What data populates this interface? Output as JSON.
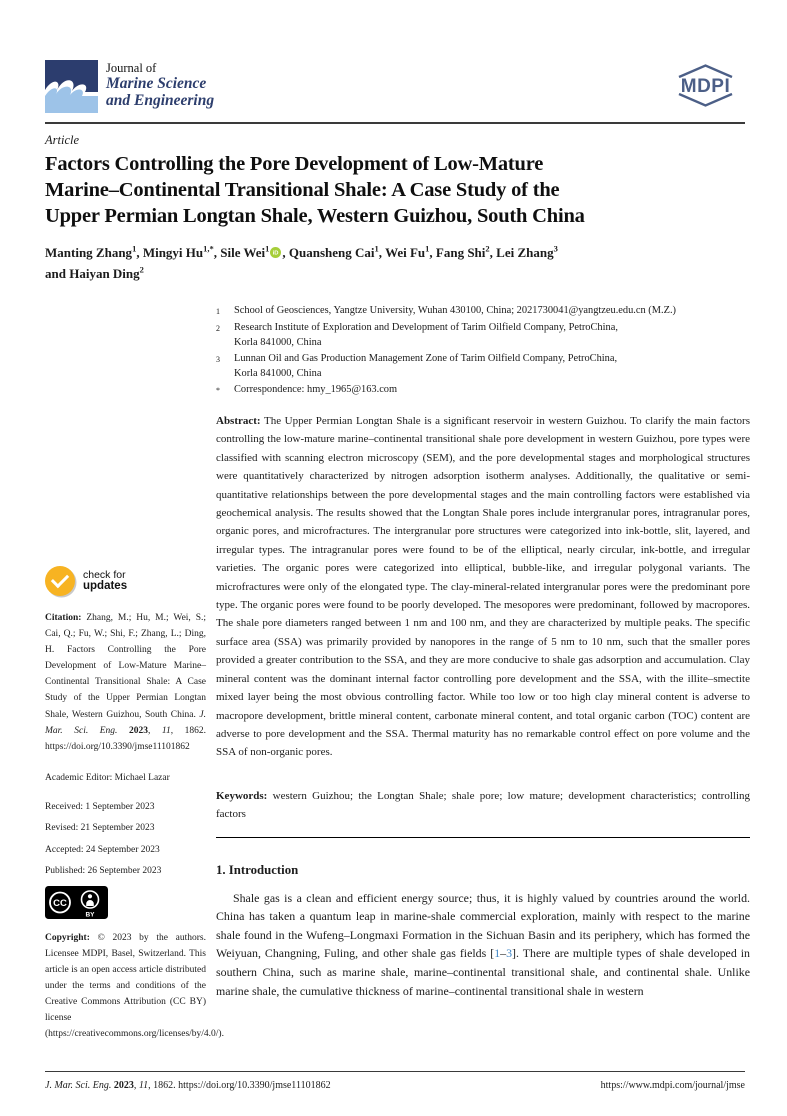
{
  "header": {
    "journal_prefix": "Journal of",
    "journal_name_line1": "Marine Science",
    "journal_name_line2": "and Engineering",
    "mdpi_text": "MDPI",
    "brand_navy": "#2d3e6d",
    "brand_lightblue": "#9dc3e8",
    "mdpi_color": "#4c5f87"
  },
  "article": {
    "type_label": "Article",
    "title_lines": [
      "Factors Controlling the Pore Development of Low-Mature",
      "Marine–Continental Transitional Shale: A Case Study of the",
      "Upper Permian Longtan Shale, Western Guizhou, South China"
    ],
    "authors_line1": [
      {
        "name": "Manting Zhang",
        "sup": "1",
        "sep": ", "
      },
      {
        "name": "Mingyi Hu",
        "sup": "1,*",
        "sep": ", "
      },
      {
        "name": "Sile Wei",
        "sup": "1",
        "sep": ", "
      },
      {
        "name": "Quansheng Cai",
        "sup": "1",
        "sep": ", "
      },
      {
        "name": "Wei Fu",
        "sup": "1",
        "sep": ", "
      },
      {
        "name": "Fang Shi",
        "sup": "2",
        "sep": ", "
      },
      {
        "name": "Lei Zhang",
        "sup": "3",
        "sep": ""
      }
    ],
    "authors_line2_prefix": "and ",
    "authors_line2": [
      {
        "name": "Haiyan Ding",
        "sup": "2",
        "sep": ""
      }
    ],
    "affiliations": [
      {
        "sup": "1",
        "lines": [
          "School of Geosciences, Yangtze University, Wuhan 430100, China; 2021730041@yangtzeu.edu.cn (M.Z.)"
        ]
      },
      {
        "sup": "2",
        "lines": [
          "Research Institute of Exploration and Development of Tarim Oilfield Company, PetroChina,",
          "Korla 841000, China"
        ]
      },
      {
        "sup": "3",
        "lines": [
          "Lunnan Oil and Gas Production Management Zone of Tarim Oilfield Company, PetroChina,",
          "Korla 841000, China"
        ]
      },
      {
        "sup": "*",
        "lines": [
          "Correspondence: hmy_1965@163.com"
        ]
      }
    ],
    "abstract_label": "Abstract:",
    "abstract_text": "The Upper Permian Longtan Shale is a significant reservoir in western Guizhou. To clarify the main factors controlling the low-mature marine–continental transitional shale pore development in western Guizhou, pore types were classified with scanning electron microscopy (SEM), and the pore developmental stages and morphological structures were quantitatively characterized by nitrogen adsorption isotherm analyses. Additionally, the qualitative or semi-quantitative relationships between the pore developmental stages and the main controlling factors were established via geochemical analysis. The results showed that the Longtan Shale pores include intergranular pores, intragranular pores, organic pores, and microfractures. The intergranular pore structures were categorized into ink-bottle, slit, layered, and irregular types. The intragranular pores were found to be of the elliptical, nearly circular, ink-bottle, and irregular varieties. The organic pores were categorized into elliptical, bubble-like, and irregular polygonal variants. The microfractures were only of the elongated type. The clay-mineral-related intergranular pores were the predominant pore type. The organic pores were found to be poorly developed. The mesopores were predominant, followed by macropores. The shale pore diameters ranged between 1 nm and 100 nm, and they are characterized by multiple peaks. The specific surface area (SSA) was primarily provided by nanopores in the range of 5 nm to 10 nm, such that the smaller pores provided a greater contribution to the SSA, and they are more conducive to shale gas adsorption and accumulation. Clay mineral content was the dominant internal factor controlling pore development and the SSA, with the illite–smectite mixed layer being the most obvious controlling factor. While too low or too high clay mineral content is adverse to macropore development, brittle mineral content, carbonate mineral content, and total organic carbon (TOC) content are adverse to pore development and the SSA. Thermal maturity has no remarkable control effect on pore volume and the SSA of non-organic pores.",
    "keywords_label": "Keywords:",
    "keywords_text": "western Guizhou; the Longtan Shale; shale pore; low mature; development characteristics; controlling factors"
  },
  "sidebar": {
    "crossmark": {
      "line1": "check for",
      "line2": "updates"
    },
    "citation_label": "Citation:",
    "citation_segments": [
      {
        "t": "Zhang, M.; Hu, M.; Wei, S.; Cai, Q.; Fu, W.; Shi, F.; Zhang, L.; Ding, H. Factors Controlling the Pore Development of Low-Mature Marine–Continental Transitional Shale: A Case Study of the Upper Permian Longtan Shale, Western Guizhou, South China. ",
        "s": "plain"
      },
      {
        "t": "J. Mar. Sci. Eng. ",
        "s": "italic"
      },
      {
        "t": "2023",
        "s": "bold"
      },
      {
        "t": ", ",
        "s": "plain"
      },
      {
        "t": "11",
        "s": "italic"
      },
      {
        "t": ", 1862. https://doi.org/10.3390/jmse11101862",
        "s": "plain"
      }
    ],
    "editor_label": "Academic Editor:",
    "editor_name": "Michael Lazar",
    "dates": [
      "Received: 1 September 2023",
      "Revised: 21 September 2023",
      "Accepted: 24 September 2023",
      "Published: 26 September 2023"
    ],
    "license_cc": "CC",
    "license_by": "BY",
    "copyright_label": "Copyright:",
    "copyright_text": "© 2023 by the authors. Licensee MDPI, Basel, Switzerland. This article is an open access article distributed under the terms and conditions of the Creative Commons Attribution (CC BY) license (https://creativecommons.org/licenses/by/4.0/)."
  },
  "main": {
    "section_heading": "1. Introduction",
    "intro_segments": [
      {
        "t": "Shale gas is a clean and efficient energy source; thus, it is highly valued by countries around the world. China has taken a quantum leap in marine-shale commercial exploration, mainly with respect to the marine shale found in the Wufeng–Longmaxi Formation in the Sichuan Basin and its periphery, which has formed the Weiyuan, Changning, Fuling, and other shale gas fields [",
        "s": "plain"
      },
      {
        "t": "1",
        "s": "link"
      },
      {
        "t": "–",
        "s": "plain"
      },
      {
        "t": "3",
        "s": "link"
      },
      {
        "t": "]. There are multiple types of shale developed in southern China, such as marine shale, marine–continental transitional shale, and continental shale. Unlike marine shale, the cumulative thickness of marine–continental transitional shale in western",
        "s": "plain"
      }
    ]
  },
  "footer": {
    "left_segments": [
      {
        "t": "J. Mar. Sci. Eng. ",
        "s": "italic"
      },
      {
        "t": "2023",
        "s": "bold"
      },
      {
        "t": ", ",
        "s": "plain"
      },
      {
        "t": "11",
        "s": "italic"
      },
      {
        "t": ", 1862. https://doi.org/10.3390/jmse11101862",
        "s": "plain"
      }
    ],
    "right_url": "https://www.mdpi.com/journal/jmse"
  }
}
